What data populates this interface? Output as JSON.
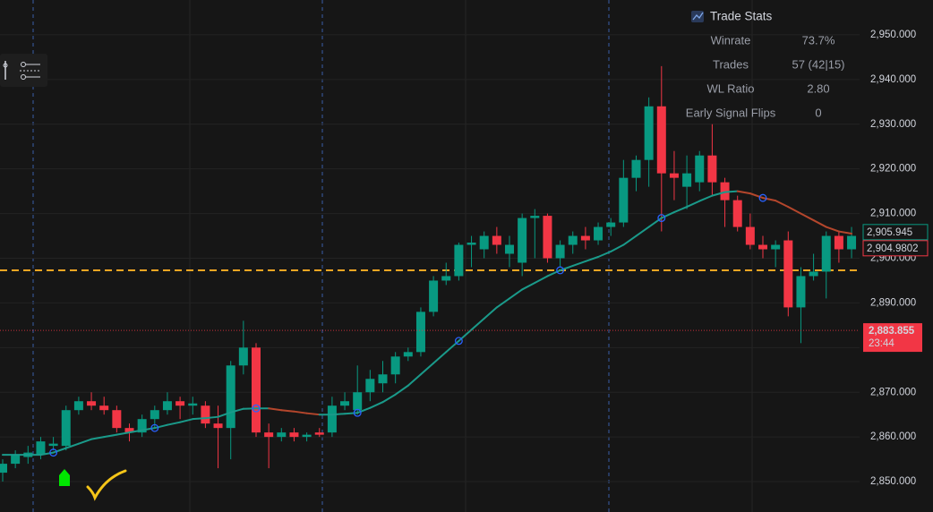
{
  "chart_data": {
    "type": "candlestick",
    "open": [
      2852,
      2854,
      2855.5,
      2856,
      2858,
      2858,
      2866,
      2868,
      2867,
      2866,
      2862,
      2861,
      2864,
      2866,
      2868,
      2867,
      2867,
      2863,
      2862,
      2876,
      2880,
      2861,
      2860,
      2861,
      2860,
      2861,
      2861,
      2867,
      2866,
      2870,
      2872,
      2874,
      2878,
      2879,
      2888,
      2895,
      2896,
      2903,
      2902,
      2905,
      2901,
      2899,
      2909,
      2909.5,
      2900,
      2903,
      2905,
      2904,
      2907,
      2908,
      2918,
      2922,
      2934,
      2919,
      2916,
      2917,
      2923,
      2917,
      2913,
      2907,
      2903,
      2902,
      2904,
      2889,
      2896,
      2897,
      2905,
      2902
    ],
    "high": [
      2855,
      2857,
      2858,
      2860,
      2860,
      2867,
      2869,
      2870,
      2869,
      2867,
      2863,
      2865,
      2867,
      2870,
      2869,
      2869,
      2868,
      2867,
      2877,
      2886,
      2881,
      2863,
      2862,
      2862,
      2861,
      2862,
      2869,
      2870,
      2876,
      2875,
      2877,
      2879,
      2880,
      2889,
      2896,
      2899,
      2903.5,
      2905,
      2906,
      2907,
      2905,
      2910,
      2911,
      2910,
      2904,
      2906,
      2907,
      2908,
      2909,
      2922,
      2923,
      2936,
      2943,
      2924,
      2923,
      2924,
      2930,
      2918,
      2914,
      2910,
      2905,
      2904,
      2906,
      2898,
      2901,
      2906,
      2906,
      2907
    ],
    "low": [
      2850,
      2853,
      2854,
      2855,
      2857,
      2857,
      2865,
      2866,
      2865,
      2861,
      2859,
      2860,
      2862,
      2865,
      2864,
      2865,
      2862,
      2853,
      2855,
      2874,
      2860,
      2853,
      2859,
      2859,
      2859,
      2860,
      2860,
      2866,
      2865,
      2868,
      2870,
      2872,
      2877,
      2878,
      2887,
      2894,
      2895,
      2898,
      2900,
      2901,
      2898,
      2896,
      2900,
      2899,
      2898,
      2901,
      2902,
      2903,
      2905,
      2907,
      2915,
      2916,
      2906,
      2913,
      2911,
      2915,
      2914,
      2907,
      2906,
      2902,
      2900,
      2898,
      2887,
      2881,
      2895,
      2891,
      2899,
      2900
    ],
    "close": [
      2854,
      2856,
      2856.5,
      2859,
      2858.5,
      2866,
      2868,
      2867,
      2866,
      2862,
      2861,
      2864,
      2866,
      2868,
      2867,
      2867.5,
      2863,
      2862,
      2876,
      2880,
      2861,
      2860,
      2861,
      2860,
      2860.5,
      2860.5,
      2867,
      2868,
      2870,
      2873,
      2874,
      2878,
      2879,
      2888,
      2895,
      2896,
      2903,
      2903.5,
      2905,
      2903,
      2903,
      2909,
      2909.5,
      2900,
      2903,
      2905,
      2904,
      2907,
      2908,
      2918,
      2922,
      2934,
      2919,
      2918,
      2919,
      2923,
      2917,
      2913,
      2907,
      2903,
      2902,
      2903,
      2889,
      2896,
      2897,
      2905,
      2902,
      2905
    ],
    "up_color": "#089981",
    "down_color": "#f23645",
    "ma": {
      "values": [
        2856,
        2856,
        2856,
        2856,
        2856.5,
        2857.5,
        2858.5,
        2859.5,
        2860,
        2860.5,
        2861,
        2861.5,
        2862,
        2862.7,
        2863.3,
        2864,
        2864.2,
        2864.5,
        2865.5,
        2866.3,
        2866.4,
        2866.4,
        2866,
        2865.7,
        2865.3,
        2865,
        2865,
        2865.2,
        2865.4,
        2866.5,
        2867.8,
        2869.5,
        2871.5,
        2874,
        2876.5,
        2879,
        2881.5,
        2884,
        2886.5,
        2889,
        2891,
        2893,
        2894.5,
        2896,
        2897.3,
        2898.3,
        2899.3,
        2900.3,
        2901.5,
        2903,
        2905,
        2907,
        2909,
        2910.3,
        2911.5,
        2912.8,
        2914,
        2914.8,
        2915,
        2914.5,
        2913.5,
        2912.9,
        2911.5,
        2910,
        2908.5,
        2907,
        2906,
        2905.5
      ],
      "up_color": "#1a9a8a",
      "down_color": "#b4462c",
      "marker_color": "#2962ff"
    },
    "levels": [
      {
        "value": 2897.3,
        "color": "#f5a623"
      }
    ],
    "price_labels": [
      {
        "value": 2905.945,
        "label": "2,905.945",
        "color": "#089981",
        "filled": false
      },
      {
        "value": 2904.9802,
        "label": "2,904.9802",
        "color": "#f23645",
        "filled": false
      },
      {
        "value": 2883.855,
        "label": "2,883.855",
        "sub": "23:44",
        "color": "#f23645",
        "filled": true
      }
    ],
    "ylim": [
      2843.2,
      2957.8
    ],
    "yticks": [
      {
        "value": 2850,
        "label": "2,850.000"
      },
      {
        "value": 2860,
        "label": "2,860.000"
      },
      {
        "value": 2870,
        "label": "2,870.000"
      },
      {
        "value": 2880,
        "label": "2,880.000"
      },
      {
        "value": 2890,
        "label": "2,890.000"
      },
      {
        "value": 2900,
        "label": "2,900.000"
      },
      {
        "value": 2910,
        "label": "2,910.000"
      },
      {
        "value": 2920,
        "label": "2,920.000"
      },
      {
        "value": 2930,
        "label": "2,930.000"
      },
      {
        "value": 2940,
        "label": "2,940.000"
      },
      {
        "value": 2950,
        "label": "2,950.000"
      }
    ],
    "grid": true
  },
  "stats": {
    "title": "Trade Stats",
    "rows": [
      [
        "Winrate",
        "73.7%"
      ],
      [
        "Trades",
        "57 (42|15)"
      ],
      [
        "WL Ratio",
        "2.80"
      ],
      [
        "Early Signal Flips",
        "0"
      ]
    ]
  }
}
